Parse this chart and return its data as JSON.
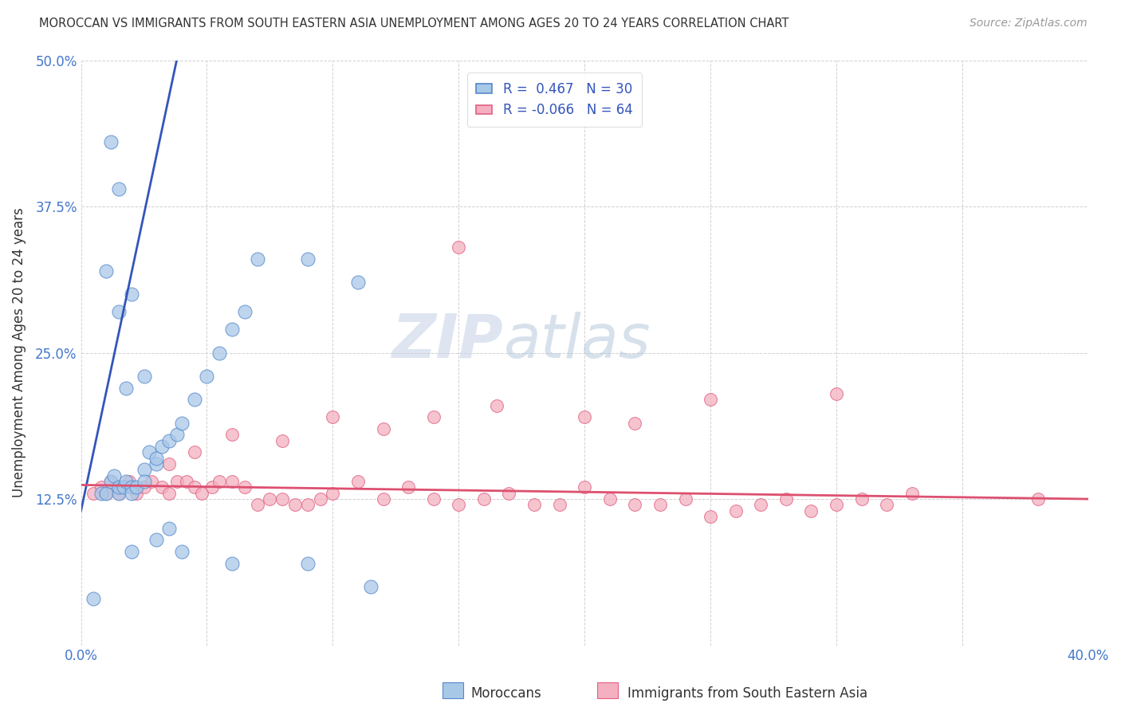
{
  "title": "MOROCCAN VS IMMIGRANTS FROM SOUTH EASTERN ASIA UNEMPLOYMENT AMONG AGES 20 TO 24 YEARS CORRELATION CHART",
  "source": "Source: ZipAtlas.com",
  "ylabel": "Unemployment Among Ages 20 to 24 years",
  "xlim": [
    0.0,
    0.4
  ],
  "ylim": [
    0.0,
    0.5
  ],
  "xticks": [
    0.0,
    0.05,
    0.1,
    0.15,
    0.2,
    0.25,
    0.3,
    0.35,
    0.4
  ],
  "xticklabels": [
    "0.0%",
    "",
    "",
    "",
    "",
    "",
    "",
    "",
    "40.0%"
  ],
  "yticks": [
    0.0,
    0.125,
    0.25,
    0.375,
    0.5
  ],
  "yticklabels": [
    "",
    "12.5%",
    "25.0%",
    "37.5%",
    "50.0%"
  ],
  "moroccan_color": "#a8c8e8",
  "sea_color": "#f4b0c0",
  "moroccan_edge_color": "#5588cc",
  "sea_edge_color": "#e06080",
  "moroccan_line_color": "#3355bb",
  "sea_line_color": "#dd5070",
  "legend_label_moroccan": "R =  0.467   N = 30",
  "legend_label_sea": "R = -0.066   N = 64",
  "watermark_zip": "ZIP",
  "watermark_atlas": "atlas",
  "background_color": "#ffffff",
  "grid_color": "#cccccc",
  "tick_color": "#4477cc",
  "moroccan_x": [
    0.005,
    0.008,
    0.01,
    0.012,
    0.013,
    0.015,
    0.015,
    0.017,
    0.018,
    0.02,
    0.02,
    0.022,
    0.025,
    0.025,
    0.027,
    0.03,
    0.03,
    0.032,
    0.035,
    0.038,
    0.04,
    0.045,
    0.05,
    0.055,
    0.06,
    0.065,
    0.07,
    0.09,
    0.11,
    0.015
  ],
  "moroccan_y": [
    0.04,
    0.13,
    0.13,
    0.14,
    0.145,
    0.13,
    0.135,
    0.135,
    0.14,
    0.135,
    0.13,
    0.135,
    0.15,
    0.14,
    0.165,
    0.155,
    0.16,
    0.17,
    0.175,
    0.18,
    0.19,
    0.21,
    0.23,
    0.25,
    0.27,
    0.285,
    0.33,
    0.33,
    0.31,
    0.39
  ],
  "moroccan_high_x": [
    0.01,
    0.012,
    0.015,
    0.018,
    0.02,
    0.025
  ],
  "moroccan_high_y": [
    0.32,
    0.43,
    0.285,
    0.22,
    0.3,
    0.23
  ],
  "moroccan_low_x": [
    0.02,
    0.03,
    0.035,
    0.04,
    0.06,
    0.09,
    0.115
  ],
  "moroccan_low_y": [
    0.08,
    0.09,
    0.1,
    0.08,
    0.07,
    0.07,
    0.05
  ],
  "sea_x_vals": [
    0.005,
    0.008,
    0.01,
    0.012,
    0.015,
    0.017,
    0.019,
    0.022,
    0.025,
    0.028,
    0.032,
    0.035,
    0.038,
    0.042,
    0.045,
    0.048,
    0.052,
    0.055,
    0.06,
    0.065,
    0.07,
    0.075,
    0.08,
    0.085,
    0.09,
    0.095,
    0.1,
    0.11,
    0.12,
    0.13,
    0.14,
    0.15,
    0.16,
    0.17,
    0.18,
    0.19,
    0.2,
    0.21,
    0.22,
    0.23,
    0.24,
    0.25,
    0.26,
    0.27,
    0.28,
    0.29,
    0.3,
    0.31,
    0.32,
    0.33,
    0.035,
    0.045,
    0.06,
    0.08,
    0.1,
    0.12,
    0.14,
    0.165,
    0.2,
    0.25,
    0.3,
    0.38,
    0.15,
    0.22
  ],
  "sea_y_vals": [
    0.13,
    0.135,
    0.13,
    0.14,
    0.13,
    0.135,
    0.14,
    0.13,
    0.135,
    0.14,
    0.135,
    0.13,
    0.14,
    0.14,
    0.135,
    0.13,
    0.135,
    0.14,
    0.14,
    0.135,
    0.12,
    0.125,
    0.125,
    0.12,
    0.12,
    0.125,
    0.13,
    0.14,
    0.125,
    0.135,
    0.125,
    0.12,
    0.125,
    0.13,
    0.12,
    0.12,
    0.135,
    0.125,
    0.12,
    0.12,
    0.125,
    0.11,
    0.115,
    0.12,
    0.125,
    0.115,
    0.12,
    0.125,
    0.12,
    0.13,
    0.155,
    0.165,
    0.18,
    0.175,
    0.195,
    0.185,
    0.195,
    0.205,
    0.195,
    0.21,
    0.215,
    0.125,
    0.34,
    0.19
  ],
  "moroccan_line_x0": 0.0,
  "moroccan_line_y0": 0.115,
  "moroccan_line_x1": 0.038,
  "moroccan_line_y1": 0.5,
  "sea_line_x0": 0.0,
  "sea_line_y0": 0.137,
  "sea_line_x1": 0.4,
  "sea_line_y1": 0.125
}
